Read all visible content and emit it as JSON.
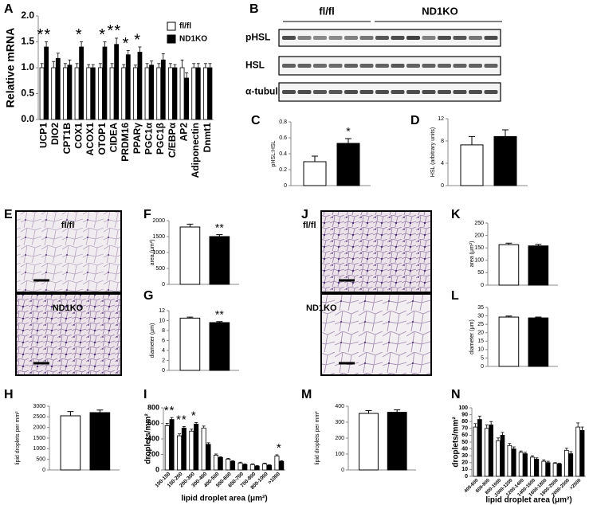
{
  "chart_data": [
    {
      "type": "grouped_bar",
      "panel": "A",
      "ylabel": "Relative mRNA",
      "categories": [
        "UCP1",
        "DIO2",
        "CPT1B",
        "COX1",
        "ACOX1",
        "OTOP1",
        "CIDEA",
        "PRDM16",
        "PPARγ",
        "PGC1α",
        "PGC1β",
        "C/EBPα",
        "AP2",
        "Adiponectin",
        "Dnmt1"
      ],
      "series": [
        {
          "name": "fl/fl",
          "color": "#ffffff",
          "values": [
            1.0,
            1.0,
            1.0,
            1.0,
            1.0,
            1.0,
            1.0,
            1.0,
            1.0,
            1.0,
            1.0,
            1.0,
            1.0,
            1.0,
            1.0
          ],
          "errors": [
            0.08,
            0.12,
            0.08,
            0.08,
            0.06,
            0.08,
            0.08,
            0.06,
            0.05,
            0.08,
            0.08,
            0.08,
            0.15,
            0.08,
            0.08
          ]
        },
        {
          "name": "ND1KO",
          "color": "#000000",
          "values": [
            1.4,
            1.18,
            1.05,
            1.4,
            1.0,
            1.4,
            1.45,
            1.25,
            1.3,
            1.05,
            1.15,
            1.0,
            0.8,
            1.0,
            1.0
          ],
          "errors": [
            0.1,
            0.1,
            0.1,
            0.1,
            0.06,
            0.1,
            0.12,
            0.08,
            0.1,
            0.08,
            0.12,
            0.06,
            0.1,
            0.08,
            0.08
          ]
        }
      ],
      "significance": [
        "**",
        null,
        null,
        "*",
        null,
        "*",
        "**",
        "*",
        "*",
        null,
        null,
        null,
        null,
        null,
        null
      ],
      "ylim": [
        0,
        2
      ],
      "yticks": [
        {
          "value": 0,
          "label": "0.0"
        },
        {
          "value": 0.5,
          "label": "0.5"
        },
        {
          "value": 1,
          "label": "1.0"
        },
        {
          "value": 1.5,
          "label": "1.5"
        },
        {
          "value": 2,
          "label": "2.0"
        }
      ],
      "legend": "top-right"
    },
    {
      "type": "bar",
      "panel": "C",
      "ylabel": "pHSL:HSL",
      "values": [
        0.3,
        0.53
      ],
      "errors": [
        0.07,
        0.06
      ],
      "colors": [
        "#ffffff",
        "#000000"
      ],
      "significance": [
        null,
        "*"
      ],
      "ylim": [
        0,
        0.8
      ],
      "yticks": [
        0,
        0.2,
        0.4,
        0.6,
        0.8
      ]
    },
    {
      "type": "bar",
      "panel": "D",
      "ylabel": "HSL (arbitrary units)",
      "values": [
        7.3,
        8.8
      ],
      "errors": [
        1.5,
        1.2
      ],
      "colors": [
        "#ffffff",
        "#000000"
      ],
      "significance": [
        null,
        null
      ],
      "ylim": [
        0,
        12
      ],
      "yticks": [
        0,
        4,
        8,
        12
      ]
    },
    {
      "type": "bar",
      "panel": "F",
      "ylabel": "area (μm²)",
      "values": [
        1800,
        1500
      ],
      "errors": [
        90,
        60
      ],
      "colors": [
        "#ffffff",
        "#000000"
      ],
      "significance": [
        null,
        "**"
      ],
      "ylim": [
        0,
        2000
      ],
      "yticks": [
        0,
        500,
        1000,
        1500,
        2000
      ]
    },
    {
      "type": "bar",
      "panel": "G",
      "ylabel": "diameter (μm)",
      "values": [
        10.5,
        9.6
      ],
      "errors": [
        0.2,
        0.2
      ],
      "colors": [
        "#ffffff",
        "#000000"
      ],
      "significance": [
        null,
        "**"
      ],
      "ylim": [
        0,
        12
      ],
      "yticks": [
        0,
        2,
        4,
        6,
        8,
        10,
        12
      ]
    },
    {
      "type": "bar",
      "panel": "H",
      "ylabel": "lipid droplets per mm²",
      "values": [
        2550,
        2700
      ],
      "errors": [
        200,
        120
      ],
      "colors": [
        "#ffffff",
        "#000000"
      ],
      "significance": [
        null,
        null
      ],
      "ylim": [
        0,
        3000
      ],
      "yticks": [
        0,
        500,
        1000,
        1500,
        2000,
        2500,
        3000
      ]
    },
    {
      "type": "grouped_bar",
      "panel": "I",
      "ylabel": "droplets/mm²",
      "xlabel": "lipid droplet area (μm²)",
      "categories": [
        "100-150",
        "150-200",
        "200-300",
        "300-400",
        "400-500",
        "500-600",
        "600-700",
        "700-800",
        "800-1000",
        ">1000"
      ],
      "series": [
        {
          "name": null,
          "color": "#ffffff",
          "values": [
            570,
            440,
            500,
            540,
            190,
            140,
            90,
            70,
            80,
            180
          ],
          "errors": [
            30,
            25,
            25,
            25,
            15,
            10,
            10,
            8,
            8,
            15
          ]
        },
        {
          "name": null,
          "color": "#000000",
          "values": [
            650,
            540,
            590,
            330,
            160,
            110,
            70,
            50,
            60,
            110
          ],
          "errors": [
            25,
            20,
            20,
            20,
            10,
            10,
            8,
            6,
            6,
            10
          ]
        }
      ],
      "significance": [
        "**",
        "**",
        "*",
        null,
        null,
        null,
        null,
        null,
        null,
        "*"
      ],
      "ylim": [
        0,
        800
      ],
      "yticks": [
        0,
        200,
        400,
        600,
        800
      ]
    },
    {
      "type": "bar",
      "panel": "K",
      "ylabel": "area (μm²)",
      "values": [
        163,
        158
      ],
      "errors": [
        6,
        6
      ],
      "colors": [
        "#ffffff",
        "#000000"
      ],
      "significance": [
        null,
        null
      ],
      "ylim": [
        0,
        250
      ],
      "yticks": [
        0,
        50,
        100,
        150,
        200,
        250
      ]
    },
    {
      "type": "bar",
      "panel": "L",
      "ylabel": "diameter (μm)",
      "values": [
        29.3,
        28.8
      ],
      "errors": [
        0.6,
        0.5
      ],
      "colors": [
        "#ffffff",
        "#000000"
      ],
      "significance": [
        null,
        null
      ],
      "ylim": [
        0,
        35
      ],
      "yticks": [
        0,
        5,
        10,
        15,
        20,
        25,
        30,
        35
      ]
    },
    {
      "type": "bar",
      "panel": "M",
      "ylabel": "lipid droplets per mm²",
      "values": [
        355,
        362
      ],
      "errors": [
        18,
        15
      ],
      "colors": [
        "#ffffff",
        "#000000"
      ],
      "significance": [
        null,
        null
      ],
      "ylim": [
        0,
        400
      ],
      "yticks": [
        0,
        100,
        200,
        300,
        400
      ]
    },
    {
      "type": "grouped_bar",
      "panel": "N",
      "ylabel": "droplets/mm²",
      "xlabel": "lipid droplet area (μm²)",
      "categories": [
        "400-600",
        "600-800",
        "800-1000",
        "1000-1200",
        "1200-1400",
        "1400-1600",
        "1600-1800",
        "1800-2000",
        "2000-2500",
        ">2500"
      ],
      "series": [
        {
          "name": null,
          "color": "#ffffff",
          "values": [
            72,
            70,
            52,
            45,
            35,
            28,
            22,
            19,
            38,
            72
          ],
          "errors": [
            5,
            5,
            4,
            3,
            2,
            2,
            2,
            1,
            3,
            6
          ]
        },
        {
          "name": null,
          "color": "#000000",
          "values": [
            83,
            75,
            60,
            40,
            33,
            25,
            20,
            18,
            33,
            67
          ],
          "errors": [
            5,
            5,
            4,
            3,
            2,
            2,
            2,
            1,
            3,
            5
          ]
        }
      ],
      "significance": [
        null,
        null,
        null,
        null,
        null,
        null,
        null,
        null,
        null,
        null
      ],
      "ylim": [
        0,
        100
      ],
      "yticks": [
        0,
        10,
        20,
        30,
        40,
        50,
        60,
        70,
        80,
        90,
        100
      ]
    }
  ],
  "blot": {
    "panel": "B",
    "groups": [
      "fl/fl",
      "ND1KO"
    ],
    "rows": [
      "pHSL",
      "HSL",
      "α-tubulin"
    ]
  },
  "micrographs": [
    {
      "panel": "E",
      "labels": [
        "fl/fl",
        "ND1KO"
      ]
    },
    {
      "panel": "J",
      "labels": [
        "fl/fl",
        "ND1KO"
      ]
    }
  ]
}
